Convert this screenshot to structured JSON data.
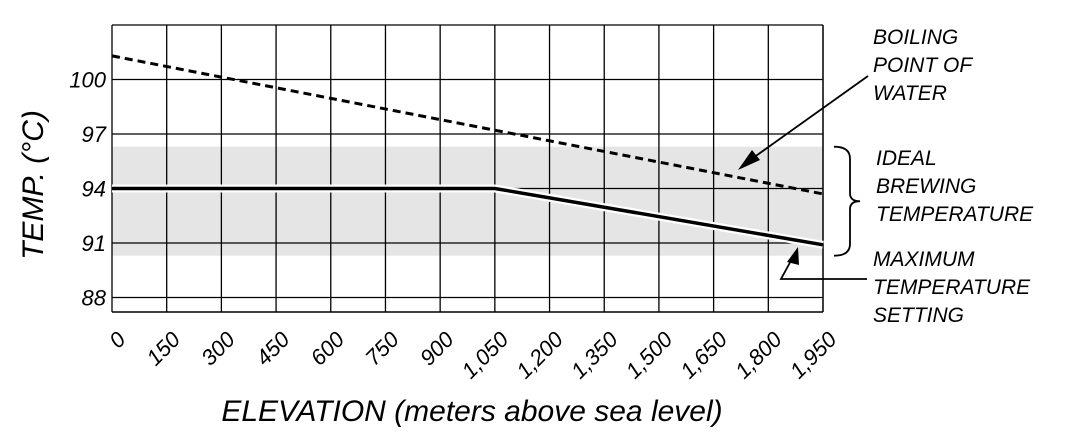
{
  "chart_data": {
    "type": "line",
    "xlabel": "ELEVATION (meters above sea level)",
    "ylabel": "TEMP. (°C)",
    "x": [
      0,
      150,
      300,
      450,
      600,
      750,
      900,
      1050,
      1200,
      1350,
      1500,
      1650,
      1800,
      1950
    ],
    "x_tick_labels": [
      "0",
      "150",
      "300",
      "450",
      "600",
      "750",
      "900",
      "1,050",
      "1,200",
      "1,350",
      "1,500",
      "1,650",
      "1,800",
      "1,950"
    ],
    "y_ticks": [
      88,
      91,
      94,
      97,
      100
    ],
    "y_tick_labels": [
      "88",
      "91",
      "94",
      "97",
      "100"
    ],
    "xlim": [
      0,
      1950
    ],
    "ylim": [
      87.2,
      103
    ],
    "grid": true,
    "shaded_band": {
      "name": "IDEAL BREWING TEMPERATURE",
      "y_range": [
        90.3,
        96.3
      ]
    },
    "series": [
      {
        "name": "BOILING POINT OF WATER",
        "style": "dashed",
        "points": [
          [
            0,
            101.3
          ],
          [
            1950,
            93.7
          ]
        ]
      },
      {
        "name": "MAXIMUM TEMPERATURE SETTING",
        "style": "solid",
        "points": [
          [
            0,
            94.0
          ],
          [
            1050,
            94.0
          ],
          [
            1950,
            90.9
          ]
        ]
      }
    ],
    "annotations": {
      "boiling": [
        "BOILING",
        "POINT OF",
        "WATER"
      ],
      "ideal": [
        "IDEAL",
        "BREWING",
        "TEMPERATURE"
      ],
      "max": [
        "MAXIMUM",
        "TEMPERATURE",
        "SETTING"
      ]
    }
  }
}
